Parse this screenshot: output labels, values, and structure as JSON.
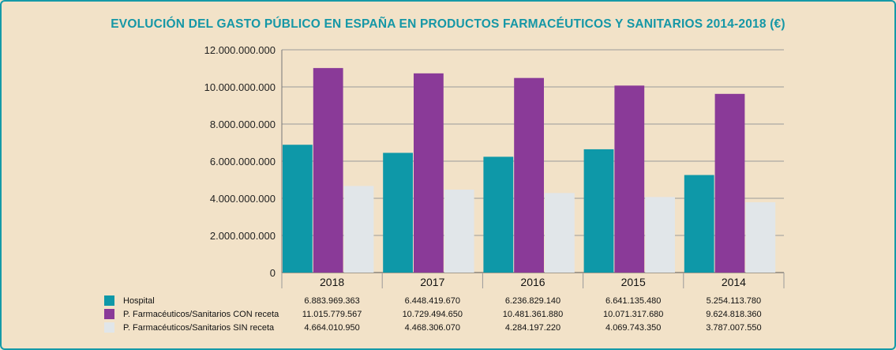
{
  "chart_data": {
    "type": "bar",
    "title": "EVOLUCIÓN DEL GASTO PÚBLICO EN ESPAÑA EN PRODUCTOS FARMACÉUTICOS Y SANITARIOS 2014-2018 (€)",
    "xlabel": "",
    "ylabel": "",
    "ylim": [
      0,
      12000000000
    ],
    "yticks": [
      0,
      2000000000,
      4000000000,
      6000000000,
      8000000000,
      10000000000,
      12000000000
    ],
    "ytick_labels": [
      "0",
      "2.000.000.000",
      "4.000.000.000",
      "6.000.000.000",
      "8.000.000.000",
      "10.000.000.000",
      "12.000.000.000"
    ],
    "grid": true,
    "legend_position": "bottom-left (data table)",
    "categories": [
      "2018",
      "2017",
      "2016",
      "2015",
      "2014"
    ],
    "series": [
      {
        "name": "Hospital",
        "color": "#0e98a8",
        "values": [
          6883969363,
          6448419670,
          6236829140,
          6641135480,
          5254113780
        ],
        "labels": [
          "6.883.969.363",
          "6.448.419.670",
          "6.236.829.140",
          "6.641.135.480",
          "5.254.113.780"
        ]
      },
      {
        "name": "P. Farmacéuticos/Sanitarios CON receta",
        "color": "#8a3a98",
        "values": [
          11015779567,
          10729494650,
          10481361880,
          10071317680,
          9624818360
        ],
        "labels": [
          "11.015.779.567",
          "10.729.494.650",
          "10.481.361.880",
          "10.071.317.680",
          "9.624.818.360"
        ]
      },
      {
        "name": "P. Farmacéuticos/Sanitarios SIN receta",
        "color": "#e1e6e9",
        "values": [
          4664010950,
          4468306070,
          4284197220,
          4069743350,
          3787007550
        ],
        "labels": [
          "4.664.010.950",
          "4.468.306.070",
          "4.284.197.220",
          "4.069.743.350",
          "3.787.007.550"
        ]
      }
    ]
  },
  "colors": {
    "background": "#f2e2c8",
    "border": "#159aa8",
    "title": "#1597a6",
    "gridline": "#9a9a9a"
  }
}
